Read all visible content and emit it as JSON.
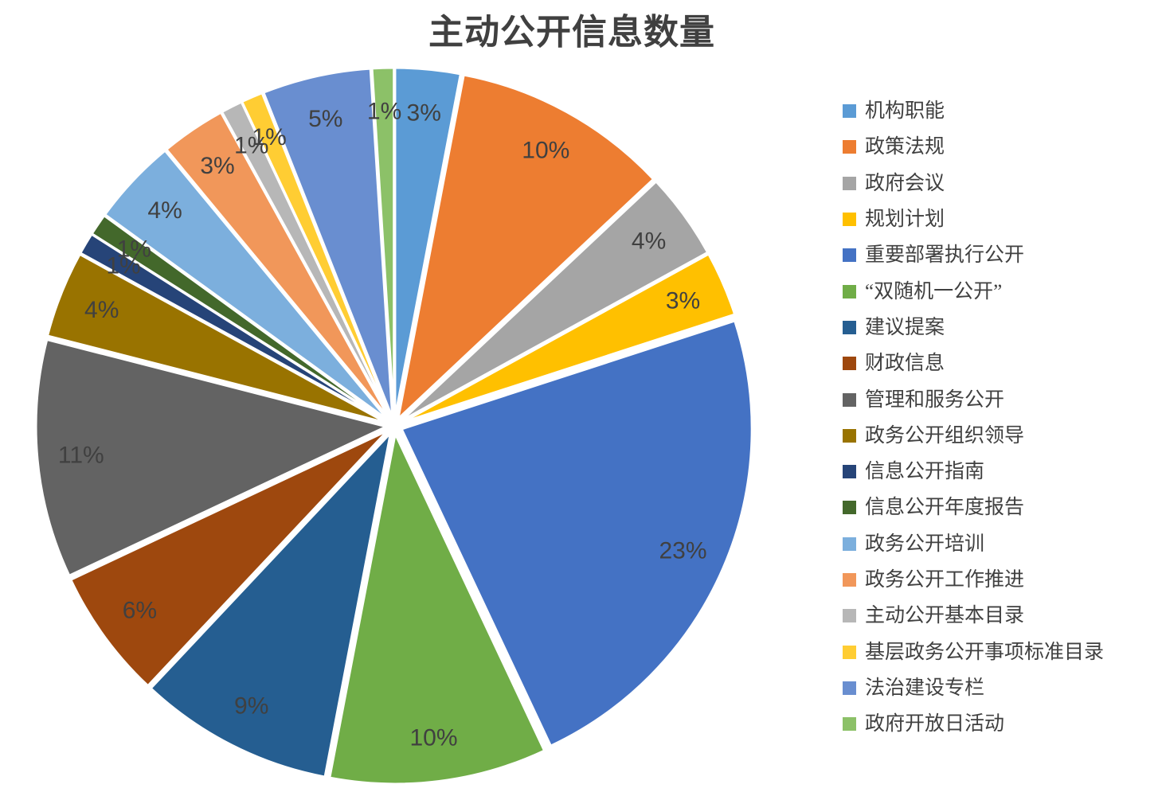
{
  "title": "主动公开信息数量",
  "colors": {
    "background": "#ffffff",
    "text": "#404040",
    "slice_border": "#ffffff"
  },
  "chart_data": {
    "type": "pie",
    "title": "主动公开信息数量",
    "legend_position": "right",
    "start_angle_deg": 0,
    "direction": "clockwise",
    "exploded": true,
    "categories": [
      "机构职能",
      "政策法规",
      "政府会议",
      "规划计划",
      "重要部署执行公开",
      "“双随机一公开”",
      "建议提案",
      "财政信息",
      "管理和服务公开",
      "政务公开组织领导",
      "信息公开指南",
      "信息公开年度报告",
      "政务公开培训",
      "政务公开工作推进",
      "主动公开基本目录",
      "基层政务公开事项标准目录",
      "法治建设专栏",
      "政府开放日活动"
    ],
    "values": [
      3,
      10,
      4,
      3,
      23,
      10,
      9,
      6,
      11,
      4,
      1,
      1,
      4,
      3,
      1,
      1,
      5,
      1
    ],
    "labels": [
      "3%",
      "10%",
      "4%",
      "3%",
      "23%",
      "10%",
      "9%",
      "6%",
      "11%",
      "4%",
      "1%",
      "1%",
      "4%",
      "3%",
      "1%",
      "1%",
      "5%",
      "1%"
    ],
    "slice_colors": [
      "#5B9BD5",
      "#ED7D31",
      "#A5A5A5",
      "#FFC000",
      "#4472C4",
      "#70AD47",
      "#255E91",
      "#9E480E",
      "#636363",
      "#997300",
      "#264478",
      "#43682B",
      "#7CAFDD",
      "#F1975A",
      "#B7B7B7",
      "#FFCD33",
      "#698ED0",
      "#8CC168"
    ]
  }
}
